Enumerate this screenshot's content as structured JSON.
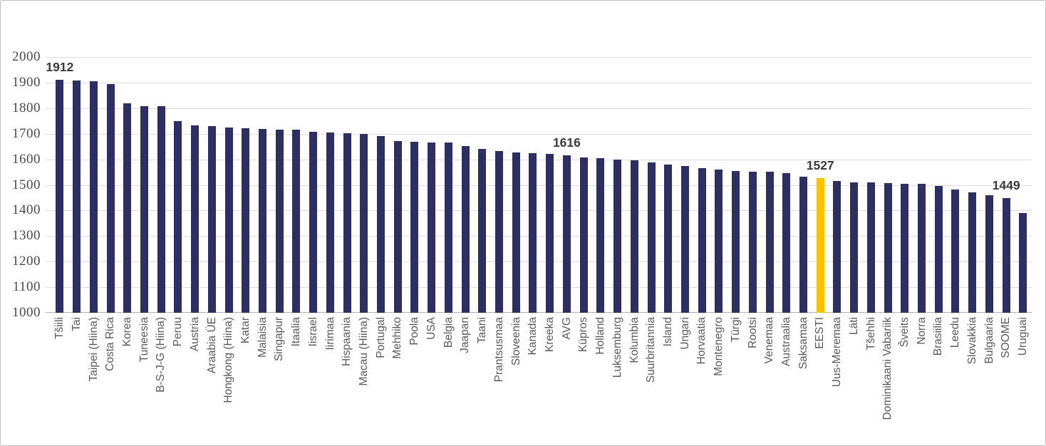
{
  "chart_data": {
    "type": "bar",
    "title": "",
    "xlabel": "",
    "ylabel": "",
    "ylim": [
      1000,
      2000
    ],
    "yticks": [
      2000,
      1900,
      1800,
      1700,
      1600,
      1500,
      1400,
      1300,
      1200,
      1100,
      1000
    ],
    "grid": true,
    "legend_position": "none",
    "bar_color": "#2d2f63",
    "highlight_color": "#ffc000",
    "highlight_category": "EESTI",
    "categories": [
      "Tšiili",
      "Tai",
      "Taipei (Hiina)",
      "Costa Rica",
      "Korea",
      "Tuneesia",
      "B-S-J-G (Hiina)",
      "Peruu",
      "Austria",
      "Araabia ÜE",
      "Hongkong (Hiina)",
      "Katar",
      "Malaisia",
      "Singapur",
      "Itaalia",
      "Iisrael",
      "Iirimaa",
      "Hispaania",
      "Macau (Hiina)",
      "Portugal",
      "Mehhiko",
      "Poola",
      "USA",
      "Belgia",
      "Jaapan",
      "Taani",
      "Prantsusmaa",
      "Sloveenia",
      "Kanada",
      "Kreeka",
      "AVG",
      "Küpros",
      "Holland",
      "Luksemburg",
      "Kolumbia",
      "Suurbritannia",
      "Island",
      "Ungari",
      "Horvaatia",
      "Montenegro",
      "Türgi",
      "Rootsi",
      "Venemaa",
      "Austraalia",
      "Saksamaa",
      "EESTI",
      "Uus-Meremaa",
      "Läti",
      "Tšehhi",
      "Dominikaani Vabariik",
      "Šveits",
      "Norra",
      "Brasiilia",
      "Leedu",
      "Slovakkia",
      "Bulgaaria",
      "SOOME",
      "Uruguai"
    ],
    "values": [
      1912,
      1909,
      1906,
      1893,
      1820,
      1809,
      1807,
      1748,
      1733,
      1729,
      1725,
      1721,
      1719,
      1717,
      1715,
      1708,
      1704,
      1701,
      1698,
      1691,
      1670,
      1669,
      1667,
      1665,
      1652,
      1640,
      1632,
      1626,
      1624,
      1621,
      1616,
      1607,
      1605,
      1598,
      1595,
      1587,
      1580,
      1573,
      1565,
      1560,
      1555,
      1552,
      1551,
      1546,
      1533,
      1527,
      1515,
      1511,
      1510,
      1507,
      1505,
      1504,
      1496,
      1483,
      1470,
      1461,
      1449,
      1389
    ],
    "data_labels": [
      {
        "category": "Tšiili",
        "text": "1912"
      },
      {
        "category": "AVG",
        "text": "1616"
      },
      {
        "category": "EESTI",
        "text": "1527"
      },
      {
        "category": "SOOME",
        "text": "1449"
      }
    ]
  },
  "colors": {
    "bar": "#2d2f63",
    "highlight": "#ffc000",
    "gridline": "#dcdcdc",
    "axis_line": "#b3b3b3",
    "tick_text": "#4a4a4a",
    "category_text": "#595959",
    "data_label_text": "#3a3a3a",
    "frame_border": "#bdbdbd"
  }
}
